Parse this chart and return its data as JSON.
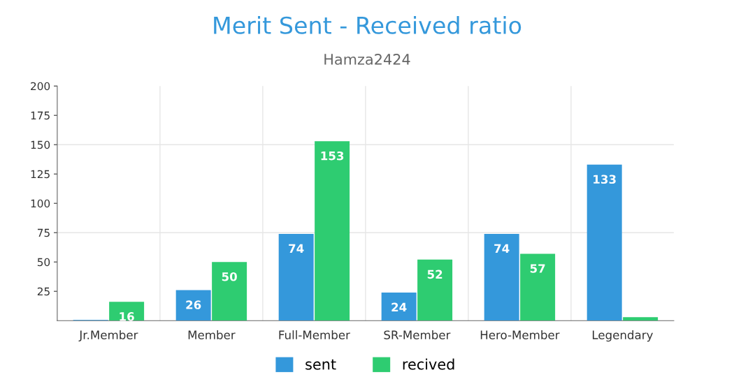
{
  "chart_data": {
    "type": "bar",
    "title": "Merit Sent - Received ratio",
    "subtitle": "Hamza2424",
    "categories": [
      "Jr.Member",
      "Member",
      "Full-Member",
      "SR-Member",
      "Hero-Member",
      "Legendary"
    ],
    "series": [
      {
        "name": "sent",
        "color": "#3498db",
        "values": [
          0.5,
          26,
          74,
          24,
          74,
          133
        ],
        "value_labels": [
          null,
          "26",
          "74",
          "24",
          "74",
          "133"
        ]
      },
      {
        "name": "recived",
        "color": "#2ecc71",
        "values": [
          16,
          50,
          153,
          52,
          57,
          3
        ],
        "value_labels": [
          "16",
          "50",
          "153",
          "52",
          "57",
          null
        ]
      }
    ],
    "ylim": [
      0,
      200
    ],
    "yticks": [
      25,
      50,
      75,
      100,
      125,
      150,
      175,
      200
    ],
    "grid": "x",
    "ref_lines": [
      {
        "axis": "y",
        "value": 75,
        "color": "#e6e6e6"
      },
      {
        "axis": "y",
        "value": 150,
        "color": "#e6e6e6"
      }
    ],
    "legend": "bottom"
  }
}
